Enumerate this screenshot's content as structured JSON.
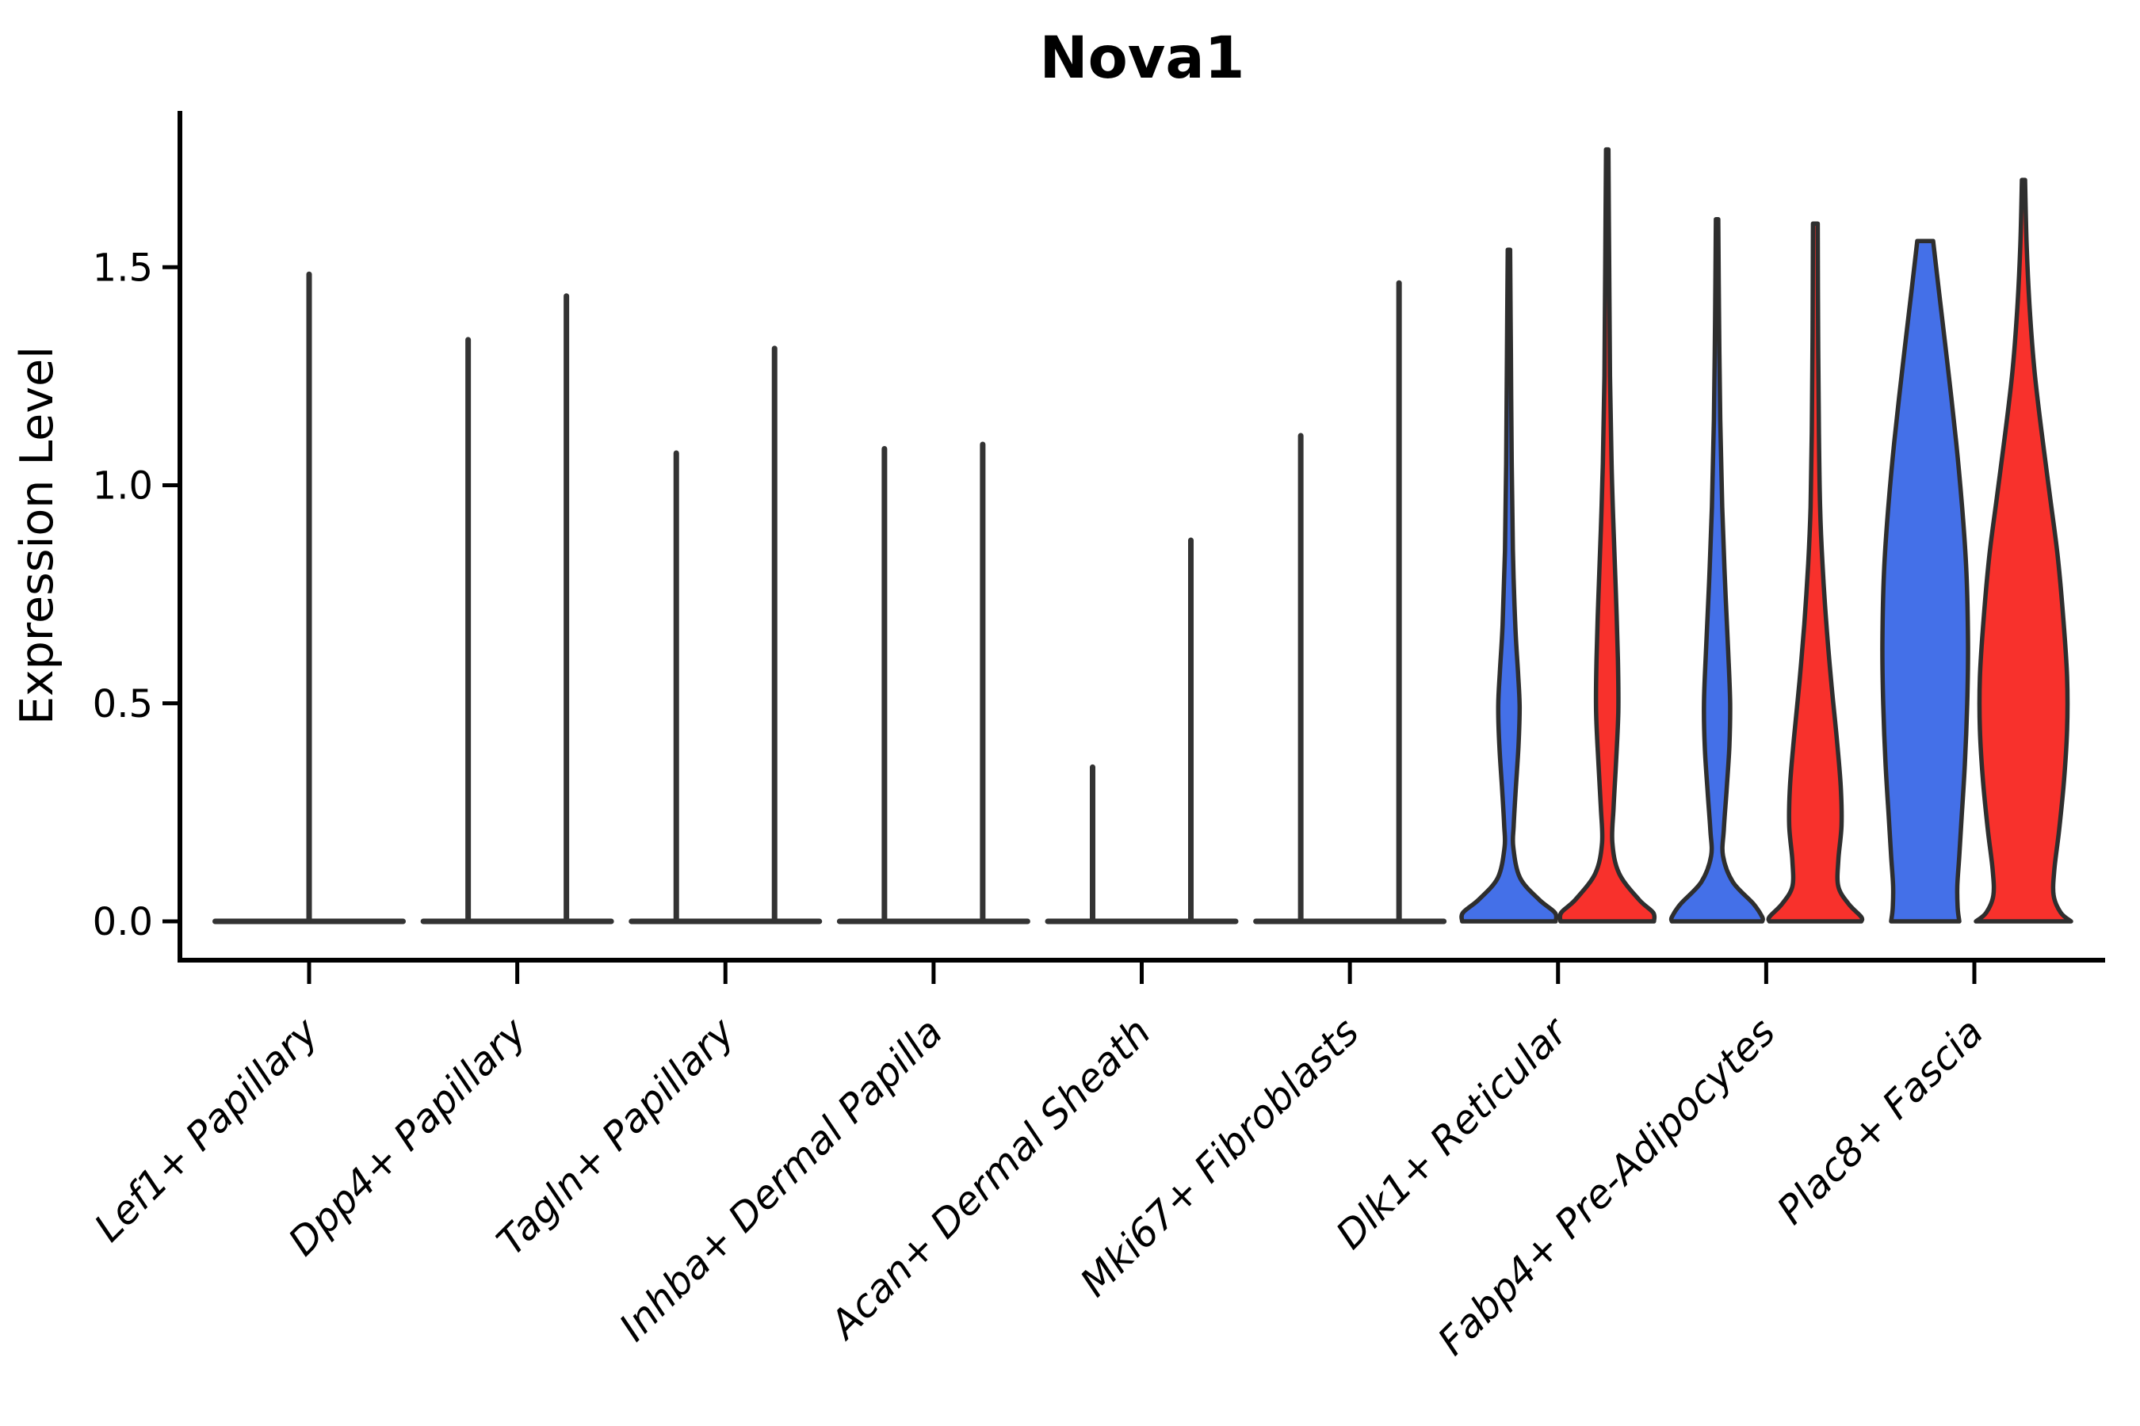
{
  "title": "Nova1",
  "axes": {
    "y_label": "Expression Level",
    "y_ticks": [
      {
        "label": "0.0",
        "value": 0.0
      },
      {
        "label": "0.5",
        "value": 0.5
      },
      {
        "label": "1.0",
        "value": 1.0
      },
      {
        "label": "1.5",
        "value": 1.5
      }
    ],
    "x_categories": [
      "Lef1+ Papillary",
      "Dpp4+ Papillary",
      "Tagln+ Papillary",
      "Inhba+ Dermal Papilla",
      "Acan+ Dermal Sheath",
      "Mki67+ Fibroblasts",
      "Dlk1+ Reticular",
      "Fabp4+ Pre-Adipocytes",
      "Plac8+ Fascia"
    ]
  },
  "colors": {
    "blue": "#4470E8",
    "red": "#F8312C",
    "dark": "#333333",
    "outline": "#2E2E2E",
    "axis": "#000000"
  },
  "chart_data": {
    "type": "violin",
    "title": "Nova1",
    "xlabel": "",
    "ylabel": "Expression Level",
    "ylim": [
      0,
      1.86
    ],
    "grid": false,
    "legend": "none",
    "categories": [
      "Lef1+ Papillary",
      "Dpp4+ Papillary",
      "Tagln+ Papillary",
      "Inhba+ Dermal Papilla",
      "Acan+ Dermal Sheath",
      "Mki67+ Fibroblasts",
      "Dlk1+ Reticular",
      "Fabp4+ Pre-Adipocytes",
      "Plac8+ Fascia"
    ],
    "groups": [
      "group1-blue",
      "group2-red"
    ],
    "note": "First six categories: expression near 0 for both groups; violins collapse to a flat base at 0 with a thin spike to the max value. Last three categories show filled blue/red violins. Profiles are [expression_value, half_width_px] density outlines.",
    "series": [
      {
        "category": "Lef1+ Papillary",
        "violins": [
          {
            "group": "merged",
            "style": "spike",
            "color": "dark",
            "position": "center",
            "max": 1.49
          }
        ]
      },
      {
        "category": "Dpp4+ Papillary",
        "violins": [
          {
            "group": "group1-blue",
            "style": "spike",
            "color": "dark",
            "position": "left",
            "max": 1.34
          },
          {
            "group": "group2-red",
            "style": "spike",
            "color": "dark",
            "position": "right",
            "max": 1.44
          }
        ]
      },
      {
        "category": "Tagln+ Papillary",
        "violins": [
          {
            "group": "group1-blue",
            "style": "spike",
            "color": "dark",
            "position": "left",
            "max": 1.08
          },
          {
            "group": "group2-red",
            "style": "spike",
            "color": "dark",
            "position": "right",
            "max": 1.32
          }
        ]
      },
      {
        "category": "Inhba+ Dermal Papilla",
        "violins": [
          {
            "group": "group1-blue",
            "style": "spike",
            "color": "dark",
            "position": "left",
            "max": 1.09
          },
          {
            "group": "group2-red",
            "style": "spike",
            "color": "dark",
            "position": "right",
            "max": 1.1
          }
        ]
      },
      {
        "category": "Acan+ Dermal Sheath",
        "violins": [
          {
            "group": "group1-blue",
            "style": "spike",
            "color": "dark",
            "position": "left",
            "max": 0.36
          },
          {
            "group": "group2-red",
            "style": "spike",
            "color": "dark",
            "position": "right",
            "max": 0.88
          }
        ]
      },
      {
        "category": "Mki67+ Fibroblasts",
        "violins": [
          {
            "group": "group1-blue",
            "style": "spike",
            "color": "dark",
            "position": "left",
            "max": 1.12
          },
          {
            "group": "group2-red",
            "style": "spike",
            "color": "dark",
            "position": "right",
            "max": 1.47
          }
        ]
      },
      {
        "category": "Dlk1+ Reticular",
        "violins": [
          {
            "group": "group1-blue",
            "style": "violin",
            "color": "blue",
            "position": "left",
            "max": 1.54,
            "profile": [
              [
                1.54,
                1.5
              ],
              [
                1.3,
                2.5
              ],
              [
                1.05,
                3.5
              ],
              [
                0.85,
                5
              ],
              [
                0.68,
                8
              ],
              [
                0.57,
                11.5
              ],
              [
                0.49,
                13.5
              ],
              [
                0.4,
                12
              ],
              [
                0.3,
                8.5
              ],
              [
                0.22,
                6
              ],
              [
                0.17,
                5.5
              ],
              [
                0.1,
                14
              ],
              [
                0.05,
                38
              ],
              [
                0.02,
                58
              ],
              [
                0,
                59
              ]
            ]
          },
          {
            "group": "group2-red",
            "style": "violin",
            "color": "red",
            "position": "right",
            "max": 1.77,
            "profile": [
              [
                1.77,
                1.5
              ],
              [
                1.5,
                2.5
              ],
              [
                1.25,
                3.5
              ],
              [
                1.05,
                5.5
              ],
              [
                0.9,
                8
              ],
              [
                0.75,
                11
              ],
              [
                0.6,
                13.5
              ],
              [
                0.48,
                14
              ],
              [
                0.36,
                11
              ],
              [
                0.26,
                8
              ],
              [
                0.18,
                6.5
              ],
              [
                0.11,
                15
              ],
              [
                0.05,
                40
              ],
              [
                0.02,
                58
              ],
              [
                0,
                59
              ]
            ]
          }
        ]
      },
      {
        "category": "Fabp4+ Pre-Adipocytes",
        "violins": [
          {
            "group": "group1-blue",
            "style": "violin",
            "color": "blue",
            "position": "left",
            "max": 1.61,
            "profile": [
              [
                1.61,
                1.5
              ],
              [
                1.38,
                2.5
              ],
              [
                1.15,
                4
              ],
              [
                0.95,
                6.5
              ],
              [
                0.78,
                10
              ],
              [
                0.62,
                14
              ],
              [
                0.5,
                16.5
              ],
              [
                0.4,
                15.5
              ],
              [
                0.3,
                12
              ],
              [
                0.21,
                8.5
              ],
              [
                0.15,
                7.5
              ],
              [
                0.09,
                20
              ],
              [
                0.04,
                46
              ],
              [
                0.01,
                57
              ],
              [
                0,
                57
              ]
            ]
          },
          {
            "group": "group2-red",
            "style": "violin",
            "color": "red",
            "position": "right",
            "max": 1.6,
            "profile": [
              [
                1.6,
                3
              ],
              [
                1.35,
                3.5
              ],
              [
                1.12,
                4.5
              ],
              [
                0.95,
                6
              ],
              [
                0.82,
                9
              ],
              [
                0.68,
                14
              ],
              [
                0.55,
                20
              ],
              [
                0.42,
                27
              ],
              [
                0.31,
                32
              ],
              [
                0.22,
                33
              ],
              [
                0.14,
                29
              ],
              [
                0.08,
                29
              ],
              [
                0.04,
                42
              ],
              [
                0.01,
                58
              ],
              [
                0,
                58
              ]
            ]
          }
        ]
      },
      {
        "category": "Plac8+ Fascia",
        "violins": [
          {
            "group": "group1-blue",
            "style": "violin",
            "color": "blue",
            "position": "left",
            "max": 1.56,
            "profile": [
              [
                1.56,
                10
              ],
              [
                1.45,
                17
              ],
              [
                1.28,
                28
              ],
              [
                1.1,
                39
              ],
              [
                0.94,
                47
              ],
              [
                0.8,
                52
              ],
              [
                0.64,
                54
              ],
              [
                0.5,
                53
              ],
              [
                0.36,
                50
              ],
              [
                0.24,
                46
              ],
              [
                0.15,
                43
              ],
              [
                0.08,
                40.5
              ],
              [
                0.03,
                41
              ],
              [
                0,
                43
              ]
            ]
          },
          {
            "group": "group2-red",
            "style": "violin",
            "color": "red",
            "position": "right",
            "max": 1.7,
            "profile": [
              [
                1.7,
                2
              ],
              [
                1.55,
                4
              ],
              [
                1.4,
                8
              ],
              [
                1.26,
                14
              ],
              [
                1.12,
                23
              ],
              [
                0.98,
                33
              ],
              [
                0.84,
                43
              ],
              [
                0.7,
                50
              ],
              [
                0.56,
                55
              ],
              [
                0.44,
                55
              ],
              [
                0.32,
                51
              ],
              [
                0.21,
                45
              ],
              [
                0.12,
                39
              ],
              [
                0.06,
                38
              ],
              [
                0.02,
                47
              ],
              [
                0,
                60
              ]
            ]
          }
        ]
      }
    ]
  }
}
